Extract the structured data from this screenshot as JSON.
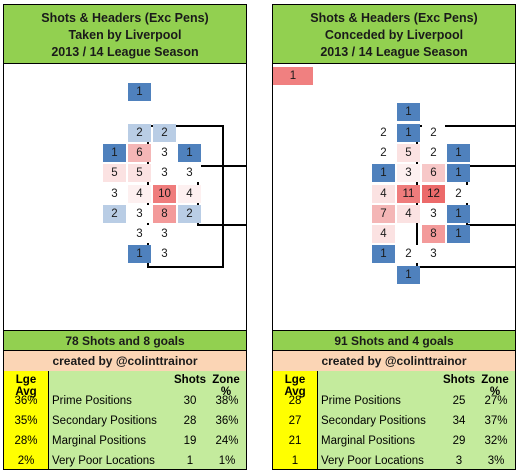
{
  "chart_data": [
    {
      "type": "heatmap",
      "title_lines": [
        "Shots & Headers (Exc Pens)",
        "Taken by Liverpool",
        "2013 / 14 League Season"
      ],
      "grid_columns": 5,
      "cells": [
        {
          "row": 1,
          "col": 2,
          "value": "1",
          "color": "#4f81bd"
        },
        {
          "row": 3,
          "col": 2,
          "value": "2",
          "color": "#b9cde5"
        },
        {
          "row": 3,
          "col": 3,
          "value": "2",
          "color": "#b9cde5"
        },
        {
          "row": 4,
          "col": 1,
          "value": "1",
          "color": "#4f81bd"
        },
        {
          "row": 4,
          "col": 2,
          "value": "6",
          "color": "#f4b6b6"
        },
        {
          "row": 4,
          "col": 3,
          "value": "3",
          "color": "#ffffff"
        },
        {
          "row": 4,
          "col": 4,
          "value": "1",
          "color": "#4f81bd"
        },
        {
          "row": 5,
          "col": 1,
          "value": "5",
          "color": "#fbe2e2"
        },
        {
          "row": 5,
          "col": 2,
          "value": "5",
          "color": "#fbe2e2"
        },
        {
          "row": 5,
          "col": 3,
          "value": "3",
          "color": "#ffffff"
        },
        {
          "row": 5,
          "col": 4,
          "value": "3",
          "color": "#ffffff"
        },
        {
          "row": 6,
          "col": 1,
          "value": "3",
          "color": "#ffffff"
        },
        {
          "row": 6,
          "col": 2,
          "value": "4",
          "color": "#fdf0f0"
        },
        {
          "row": 6,
          "col": 3,
          "value": "10",
          "color": "#ef7c7c"
        },
        {
          "row": 6,
          "col": 4,
          "value": "4",
          "color": "#fdf0f0"
        },
        {
          "row": 7,
          "col": 1,
          "value": "2",
          "color": "#b9cde5"
        },
        {
          "row": 7,
          "col": 2,
          "value": "3",
          "color": "#ffffff"
        },
        {
          "row": 7,
          "col": 3,
          "value": "8",
          "color": "#f39a9a"
        },
        {
          "row": 7,
          "col": 4,
          "value": "2",
          "color": "#b9cde5"
        },
        {
          "row": 8,
          "col": 2,
          "value": "3",
          "color": "#ffffff"
        },
        {
          "row": 8,
          "col": 3,
          "value": "3",
          "color": "#ffffff"
        },
        {
          "row": 9,
          "col": 2,
          "value": "1",
          "color": "#4f81bd"
        },
        {
          "row": 9,
          "col": 3,
          "value": "3",
          "color": "#ffffff"
        }
      ],
      "footer": "78 Shots and 8 goals",
      "credit": "created by @colinttrainor",
      "table": {
        "header_avg": "Lge Avg",
        "header_shots": "Shots",
        "header_zone": "Zone %",
        "rows": [
          {
            "avg": "36%",
            "label": "Prime Positions",
            "shots": "30",
            "zone": "38%"
          },
          {
            "avg": "35%",
            "label": "Secondary Positions",
            "shots": "28",
            "zone": "36%"
          },
          {
            "avg": "28%",
            "label": "Marginal Positions",
            "shots": "19",
            "zone": "24%"
          },
          {
            "avg": "2%",
            "label": "Very Poor Locations",
            "shots": "1",
            "zone": "1%"
          }
        ]
      }
    },
    {
      "type": "heatmap",
      "title_lines": [
        "Shots & Headers (Exc Pens)",
        "Conceded by Liverpool",
        "2013 / 14 League Season"
      ],
      "grid_columns": 5,
      "cells": [
        {
          "row": 0,
          "col": 0,
          "value": "1",
          "color": "#f08080"
        },
        {
          "row": 2,
          "col": 2,
          "value": "1",
          "color": "#4f81bd"
        },
        {
          "row": 3,
          "col": 1,
          "value": "2",
          "color": "#ffffff"
        },
        {
          "row": 3,
          "col": 2,
          "value": "1",
          "color": "#4f81bd"
        },
        {
          "row": 3,
          "col": 3,
          "value": "2",
          "color": "#ffffff"
        },
        {
          "row": 4,
          "col": 1,
          "value": "2",
          "color": "#ffffff"
        },
        {
          "row": 4,
          "col": 2,
          "value": "5",
          "color": "#fbe2e2"
        },
        {
          "row": 4,
          "col": 3,
          "value": "2",
          "color": "#ffffff"
        },
        {
          "row": 4,
          "col": 4,
          "value": "1",
          "color": "#4f81bd"
        },
        {
          "row": 5,
          "col": 1,
          "value": "1",
          "color": "#4f81bd"
        },
        {
          "row": 5,
          "col": 2,
          "value": "3",
          "color": "#fdf0f0"
        },
        {
          "row": 5,
          "col": 3,
          "value": "6",
          "color": "#f7c8c8"
        },
        {
          "row": 5,
          "col": 4,
          "value": "1",
          "color": "#4f81bd"
        },
        {
          "row": 6,
          "col": 1,
          "value": "4",
          "color": "#fbe2e2"
        },
        {
          "row": 6,
          "col": 2,
          "value": "11",
          "color": "#ef7c7c"
        },
        {
          "row": 6,
          "col": 3,
          "value": "12",
          "color": "#ec6a6a"
        },
        {
          "row": 6,
          "col": 4,
          "value": "2",
          "color": "#ffffff"
        },
        {
          "row": 7,
          "col": 1,
          "value": "7",
          "color": "#f4b6b6"
        },
        {
          "row": 7,
          "col": 2,
          "value": "4",
          "color": "#fbe2e2"
        },
        {
          "row": 7,
          "col": 3,
          "value": "3",
          "color": "#ffffff"
        },
        {
          "row": 7,
          "col": 4,
          "value": "1",
          "color": "#4f81bd"
        },
        {
          "row": 8,
          "col": 1,
          "value": "4",
          "color": "#fbe2e2"
        },
        {
          "row": 8,
          "col": 3,
          "value": "8",
          "color": "#f39a9a"
        },
        {
          "row": 8,
          "col": 4,
          "value": "1",
          "color": "#4f81bd"
        },
        {
          "row": 9,
          "col": 1,
          "value": "1",
          "color": "#4f81bd"
        },
        {
          "row": 9,
          "col": 2,
          "value": "2",
          "color": "#ffffff"
        },
        {
          "row": 9,
          "col": 3,
          "value": "3",
          "color": "#ffffff"
        },
        {
          "row": 10,
          "col": 2,
          "value": "1",
          "color": "#4f81bd"
        }
      ],
      "footer": "91 Shots and 4 goals",
      "credit": "created by @colinttrainor",
      "table": {
        "header_avg": "Lge Avg",
        "header_shots": "Shots",
        "header_zone": "Zone %",
        "rows": [
          {
            "avg": "28",
            "label": "Prime Positions",
            "shots": "25",
            "zone": "27%"
          },
          {
            "avg": "27",
            "label": "Secondary Positions",
            "shots": "34",
            "zone": "37%"
          },
          {
            "avg": "21",
            "label": "Marginal Positions",
            "shots": "29",
            "zone": "32%"
          },
          {
            "avg": "1",
            "label": "Very Poor Locations",
            "shots": "3",
            "zone": "3%"
          }
        ]
      }
    }
  ],
  "colors": {
    "header_green": "#92d050",
    "credit_peach": "#fbd5b5",
    "lge_avg_yellow": "#ffff00",
    "table_green": "#c4eb9d"
  }
}
